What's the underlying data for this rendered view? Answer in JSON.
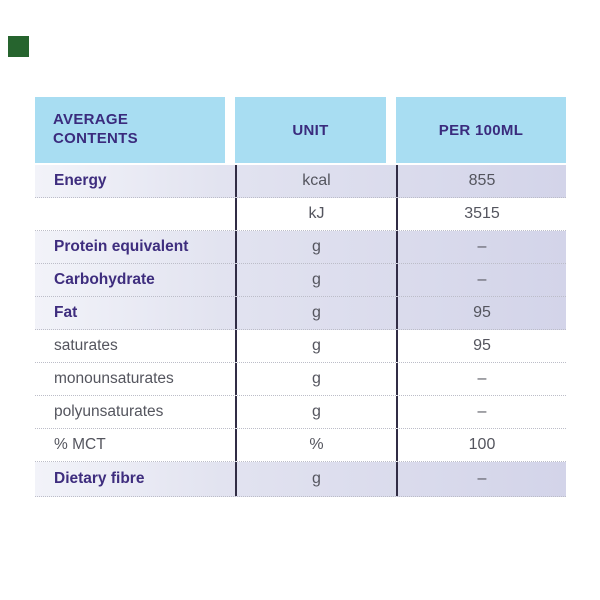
{
  "decoration": {
    "green_square_color": "#26642e"
  },
  "colors": {
    "header_background": "#a8ddf2",
    "header_text": "#3a2b7d",
    "emphasis_text": "#3e2d7e",
    "body_text": "#54555e",
    "shaded_row": "#d3d4e9",
    "column_rule": "#312d45",
    "row_divider_dotted": "#bcbdc8"
  },
  "table": {
    "header": {
      "col1": "AVERAGE CONTENTS",
      "col2": "UNIT",
      "col3": "PER 100ML"
    },
    "rows": [
      {
        "label": "Energy",
        "unit": "kcal",
        "per_100ml": "855",
        "emphasis": true,
        "shaded": true
      },
      {
        "label": "",
        "unit": "kJ",
        "per_100ml": "3515",
        "emphasis": false,
        "shaded": false
      },
      {
        "label": "Protein equivalent",
        "unit": "g",
        "per_100ml": "–",
        "emphasis": true,
        "shaded": true
      },
      {
        "label": "Carbohydrate",
        "unit": "g",
        "per_100ml": "–",
        "emphasis": true,
        "shaded": true
      },
      {
        "label": "Fat",
        "unit": "g",
        "per_100ml": "95",
        "emphasis": true,
        "shaded": true
      },
      {
        "label": "saturates",
        "unit": "g",
        "per_100ml": "95",
        "emphasis": false,
        "shaded": false
      },
      {
        "label": "monounsaturates",
        "unit": "g",
        "per_100ml": "–",
        "emphasis": false,
        "shaded": false
      },
      {
        "label": "polyunsaturates",
        "unit": "g",
        "per_100ml": "–",
        "emphasis": false,
        "shaded": false
      },
      {
        "label": "% MCT",
        "unit": "%",
        "per_100ml": "100",
        "emphasis": false,
        "shaded": false
      },
      {
        "label": "Dietary fibre",
        "unit": "g",
        "per_100ml": "–",
        "emphasis": true,
        "shaded": true
      }
    ]
  }
}
